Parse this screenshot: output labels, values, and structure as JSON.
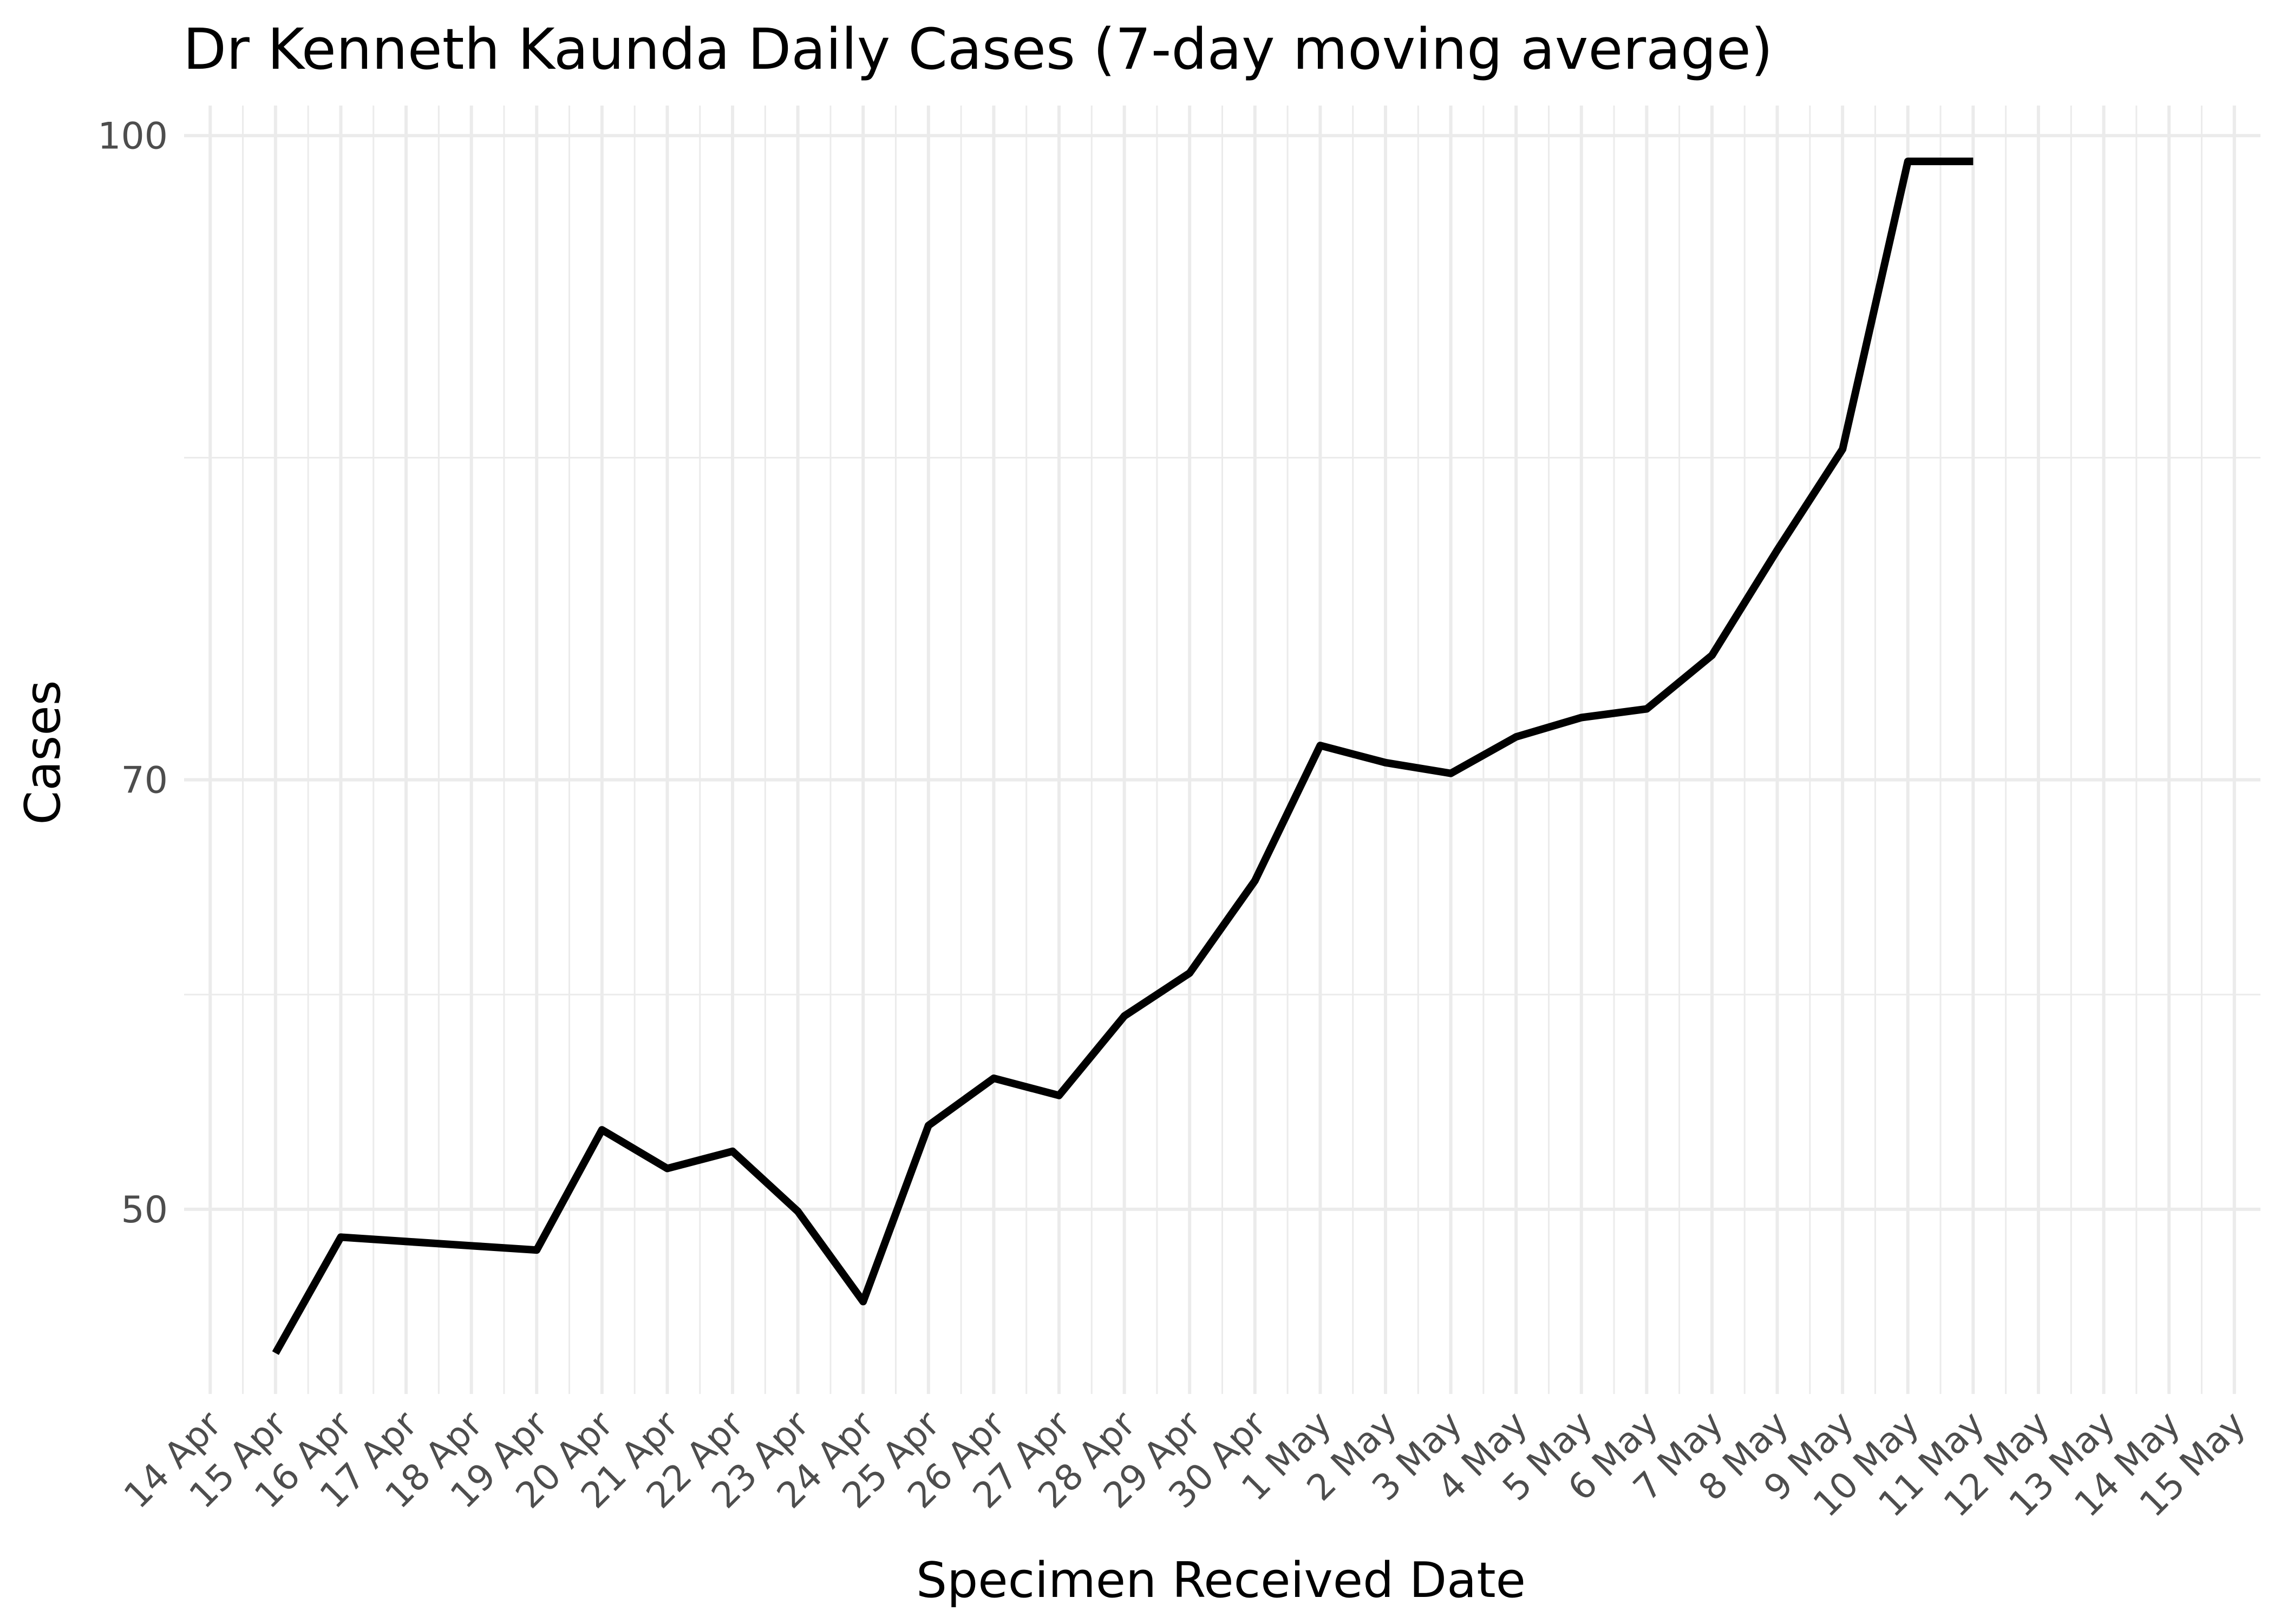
{
  "chart_data": {
    "type": "line",
    "title": "Dr Kenneth Kaunda Daily Cases (7-day moving average)",
    "xlabel": "Specimen Received Date",
    "ylabel": "Cases",
    "x_tick_labels": [
      "14 Apr",
      "15 Apr",
      "16 Apr",
      "17 Apr",
      "18 Apr",
      "19 Apr",
      "20 Apr",
      "21 Apr",
      "22 Apr",
      "23 Apr",
      "24 Apr",
      "25 Apr",
      "26 Apr",
      "27 Apr",
      "28 Apr",
      "29 Apr",
      "30 Apr",
      "1 May",
      "2 May",
      "3 May",
      "4 May",
      "5 May",
      "6 May",
      "7 May",
      "8 May",
      "9 May",
      "10 May",
      "11 May",
      "12 May",
      "13 May",
      "14 May",
      "15 May"
    ],
    "y_ticks": [
      50,
      70,
      100
    ],
    "ylim": [
      41.4,
      101.4
    ],
    "xlim": [
      -0.4,
      31.4
    ],
    "grid": true,
    "line_color": "#000000",
    "series": [
      {
        "name": "7-day moving average",
        "x": [
          "15 Apr",
          "16 Apr",
          "17 Apr",
          "18 Apr",
          "19 Apr",
          "20 Apr",
          "21 Apr",
          "22 Apr",
          "23 Apr",
          "24 Apr",
          "25 Apr",
          "26 Apr",
          "27 Apr",
          "28 Apr",
          "29 Apr",
          "30 Apr",
          "1 May",
          "2 May",
          "3 May",
          "4 May",
          "5 May",
          "6 May",
          "7 May",
          "8 May",
          "9 May",
          "10 May",
          "11 May"
        ],
        "values": [
          43.3,
          48.7,
          48.5,
          48.3,
          48.1,
          53.7,
          51.9,
          52.7,
          49.9,
          45.7,
          53.9,
          56.1,
          55.3,
          59.0,
          61.0,
          65.3,
          71.6,
          70.8,
          70.3,
          72.0,
          72.9,
          73.3,
          75.8,
          80.7,
          85.4,
          98.8,
          98.8
        ]
      }
    ]
  }
}
